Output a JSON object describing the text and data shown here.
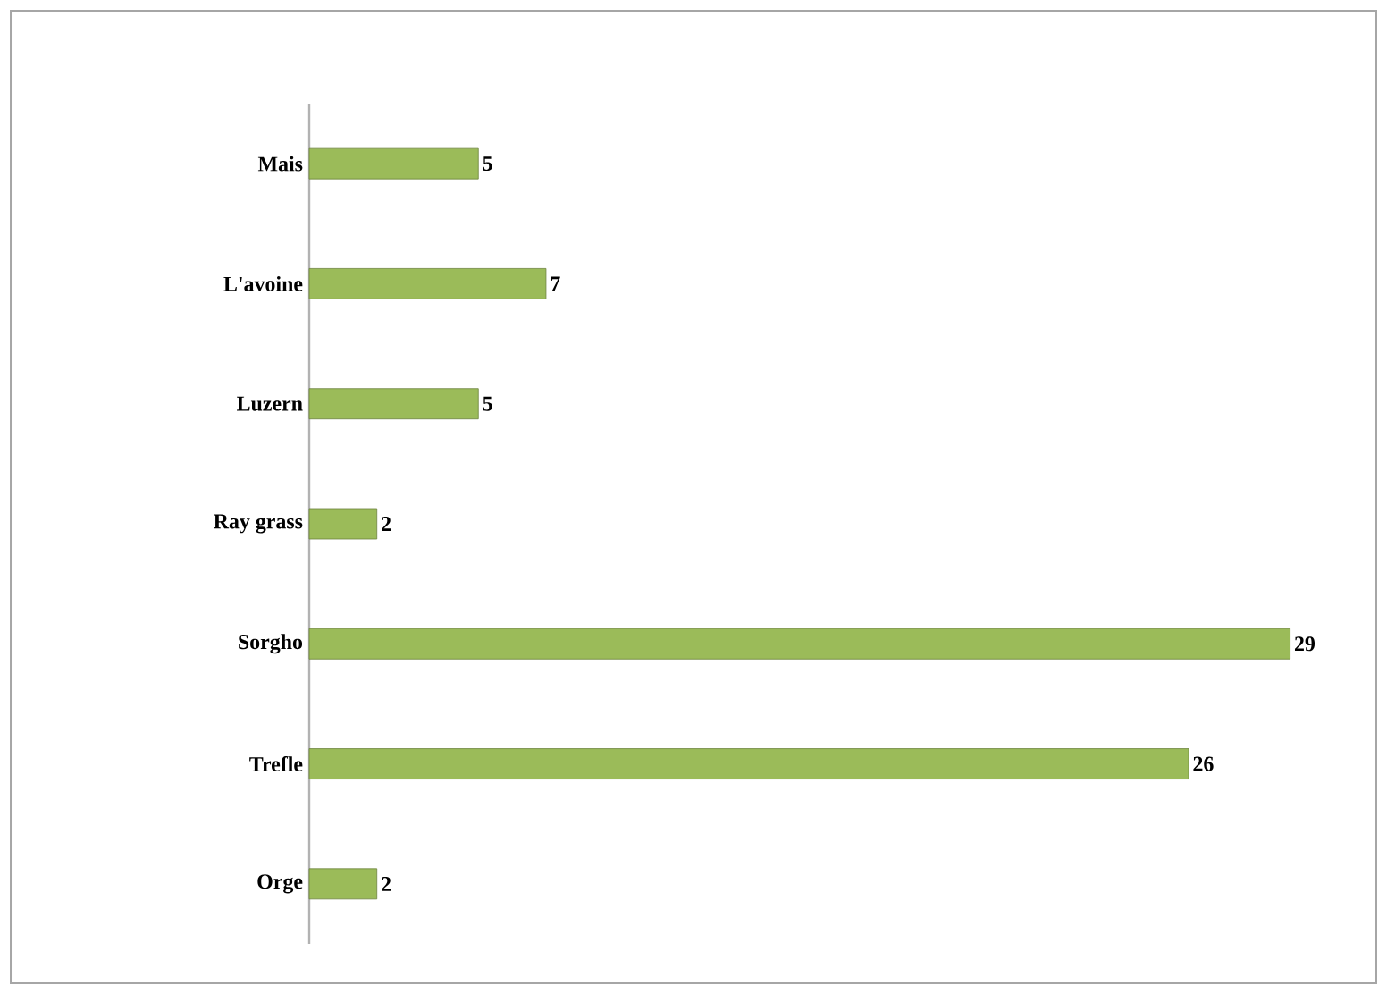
{
  "chart_data": {
    "type": "bar",
    "orientation": "horizontal",
    "categories": [
      "Mais",
      "L'avoine",
      "Luzern",
      "Ray grass",
      "Sorgho",
      "Trefle",
      "Orge"
    ],
    "values": [
      5,
      7,
      5,
      2,
      29,
      26,
      2
    ],
    "color": "#9bbb59",
    "data_labels": true
  }
}
